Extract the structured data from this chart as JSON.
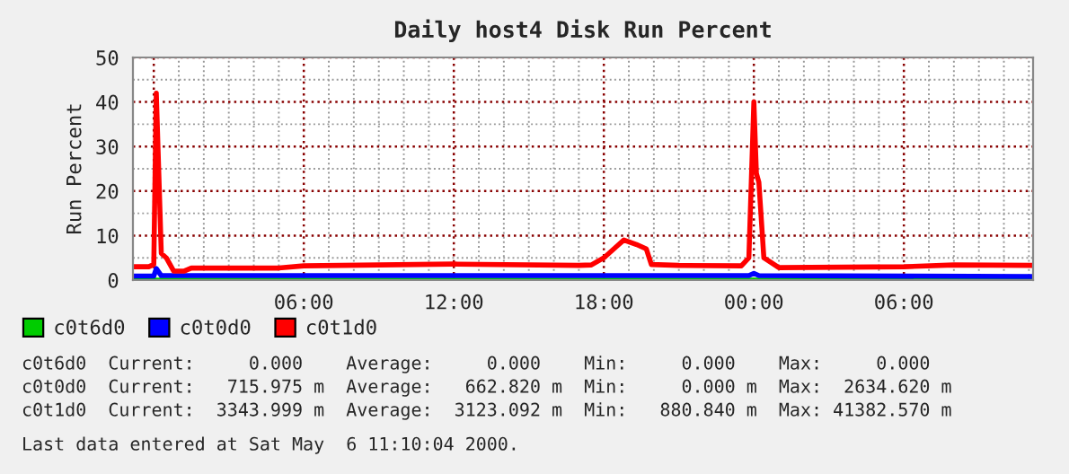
{
  "chart_data": {
    "type": "line",
    "title": "Daily host4 Disk Run Percent",
    "ylabel": "Run Percent",
    "xlim": [
      "2000-05-04T23:10",
      "2000-05-06T11:10"
    ],
    "xticks": [
      {
        "value": "2000-05-05T00:00",
        "label": null
      },
      {
        "value": "2000-05-05T06:00",
        "label": "06:00"
      },
      {
        "value": "2000-05-05T12:00",
        "label": "12:00"
      },
      {
        "value": "2000-05-05T18:00",
        "label": "18:00"
      },
      {
        "value": "2000-05-06T00:00",
        "label": "00:00"
      },
      {
        "value": "2000-05-06T06:00",
        "label": "06:00"
      }
    ],
    "ylim": [
      0,
      50
    ],
    "yticks": [
      0,
      10,
      20,
      30,
      40,
      50
    ],
    "grid": true,
    "legend": "bottom",
    "series": [
      {
        "name": "c0t6d0",
        "color": "#00cc00",
        "x": [
          "2000-05-04T23:10",
          "2000-05-06T11:10"
        ],
        "values": [
          0,
          0
        ]
      },
      {
        "name": "c0t0d0",
        "color": "#0000ff",
        "x": [
          "2000-05-04T23:10",
          "2000-05-05T00:00",
          "2000-05-05T00:06",
          "2000-05-05T00:18",
          "2000-05-05T23:48",
          "2000-05-06T00:00",
          "2000-05-06T00:12",
          "2000-05-06T11:10"
        ],
        "values": [
          0.9,
          0.9,
          2.6,
          1,
          1,
          1.5,
          1,
          0.8
        ]
      },
      {
        "name": "c0t1d0",
        "color": "#ff0000",
        "x": [
          "2000-05-04T23:10",
          "2000-05-04T23:48",
          "2000-05-05T00:00",
          "2000-05-05T00:06",
          "2000-05-05T00:12",
          "2000-05-05T00:18",
          "2000-05-05T00:30",
          "2000-05-05T00:48",
          "2000-05-05T01:12",
          "2000-05-05T01:30",
          "2000-05-05T05:00",
          "2000-05-05T06:00",
          "2000-05-05T12:00",
          "2000-05-05T17:00",
          "2000-05-05T17:30",
          "2000-05-05T18:00",
          "2000-05-05T18:30",
          "2000-05-05T18:48",
          "2000-05-05T19:18",
          "2000-05-05T19:42",
          "2000-05-05T19:54",
          "2000-05-05T21:00",
          "2000-05-05T23:30",
          "2000-05-05T23:48",
          "2000-05-06T00:00",
          "2000-05-06T00:06",
          "2000-05-06T00:12",
          "2000-05-06T00:24",
          "2000-05-06T01:00",
          "2000-05-06T06:00",
          "2000-05-06T08:00",
          "2000-05-06T11:10"
        ],
        "values": [
          3,
          3,
          3.5,
          42,
          24,
          6,
          5,
          2,
          2,
          2.7,
          2.7,
          3.2,
          3.6,
          3.3,
          3.4,
          5,
          7.5,
          9,
          8,
          7,
          3.5,
          3.3,
          3.2,
          5,
          40,
          24,
          22,
          5,
          2.8,
          3,
          3.4,
          3.3
        ]
      }
    ],
    "annotations": [
      "c0t6d0  Current:     0.000    Average:     0.000    Min:     0.000    Max:     0.000",
      "c0t0d0  Current:   715.975 m  Average:   662.820 m  Min:     0.000 m  Max:  2634.620 m",
      "c0t1d0  Current:  3343.999 m  Average:  3123.092 m  Min:   880.840 m  Max: 41382.570 m",
      "Last data entered at Sat May  6 11:10:04 2000."
    ]
  }
}
